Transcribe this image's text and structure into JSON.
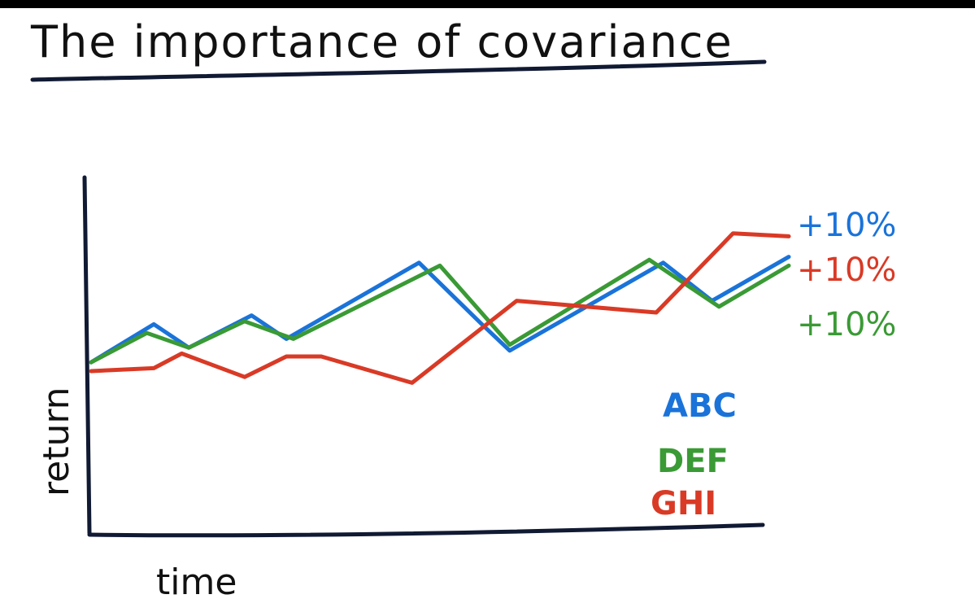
{
  "chart_data": {
    "type": "line",
    "title": "The importance of covariance",
    "xlabel": "time",
    "ylabel": "return",
    "xlim": [
      0,
      10
    ],
    "ylim": [
      0,
      10
    ],
    "grid": false,
    "legend": "bottom-right",
    "series": [
      {
        "name": "ABC",
        "color": "#1a73d9",
        "end_label": "+10%",
        "points": [
          [
            0,
            4.3
          ],
          [
            0.9,
            5.6
          ],
          [
            1.4,
            4.8
          ],
          [
            2.3,
            5.9
          ],
          [
            2.8,
            5.1
          ],
          [
            4.7,
            7.7
          ],
          [
            5.6,
            5.6
          ],
          [
            6.0,
            4.7
          ],
          [
            8.2,
            7.7
          ],
          [
            8.9,
            6.4
          ],
          [
            10.0,
            7.9
          ]
        ]
      },
      {
        "name": "DEF",
        "color": "#3a9a35",
        "end_label": "+10%",
        "points": [
          [
            0,
            4.3
          ],
          [
            0.8,
            5.3
          ],
          [
            1.4,
            4.8
          ],
          [
            2.2,
            5.7
          ],
          [
            2.9,
            5.1
          ],
          [
            5.0,
            7.6
          ],
          [
            6.0,
            4.9
          ],
          [
            8.0,
            7.8
          ],
          [
            9.0,
            6.2
          ],
          [
            10.0,
            7.6
          ]
        ]
      },
      {
        "name": "GHI",
        "color": "#d93a26",
        "end_label": "+10%",
        "points": [
          [
            0,
            4.0
          ],
          [
            0.9,
            4.1
          ],
          [
            1.3,
            4.6
          ],
          [
            2.2,
            3.8
          ],
          [
            2.8,
            4.5
          ],
          [
            3.3,
            4.5
          ],
          [
            4.6,
            3.6
          ],
          [
            6.1,
            6.4
          ],
          [
            8.1,
            6.0
          ],
          [
            9.2,
            8.7
          ],
          [
            10.0,
            8.6
          ]
        ]
      }
    ]
  }
}
